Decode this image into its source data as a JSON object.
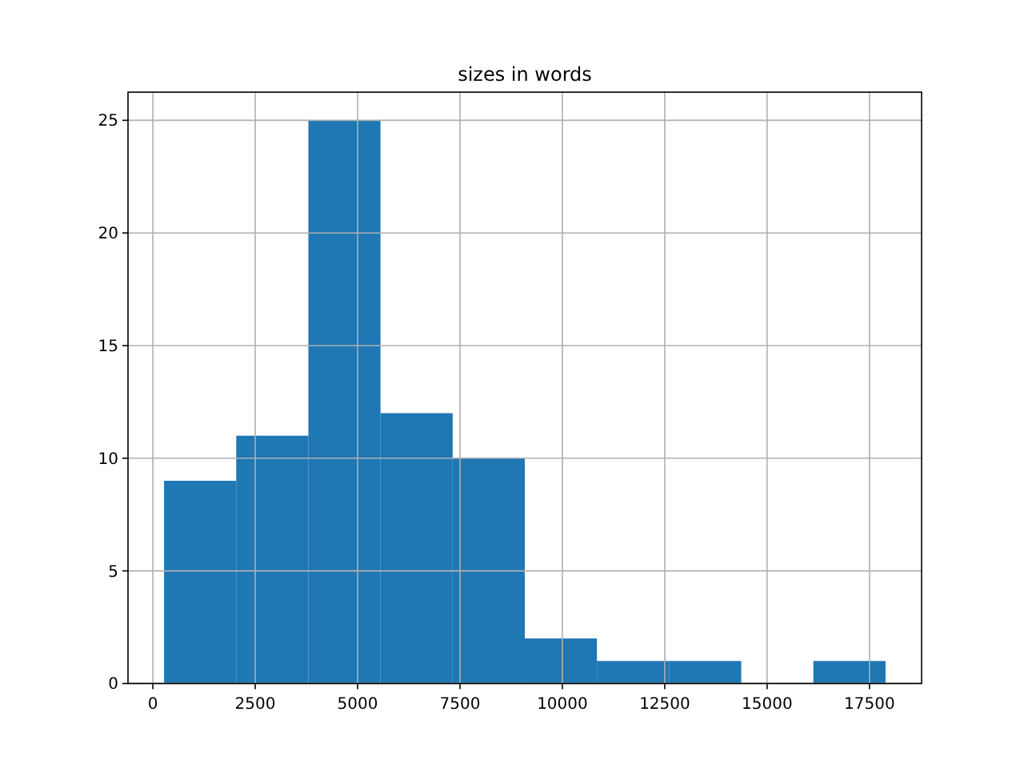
{
  "chart_data": {
    "type": "histogram",
    "title": "sizes in words",
    "bins": [
      274,
      2036,
      3798,
      5559,
      7321,
      9083,
      10844,
      12606,
      14368,
      16129,
      17891
    ],
    "values": [
      9,
      11,
      25,
      12,
      10,
      2,
      1,
      1,
      0,
      1
    ],
    "color": "#1f77b4",
    "xlim": [
      -607,
      18772
    ],
    "xticks": [
      0,
      2500,
      5000,
      7500,
      10000,
      12500,
      15000,
      17500
    ],
    "ylim": [
      0,
      26.25
    ],
    "yticks": [
      0,
      5,
      10,
      15,
      20,
      25
    ],
    "grid": true
  }
}
